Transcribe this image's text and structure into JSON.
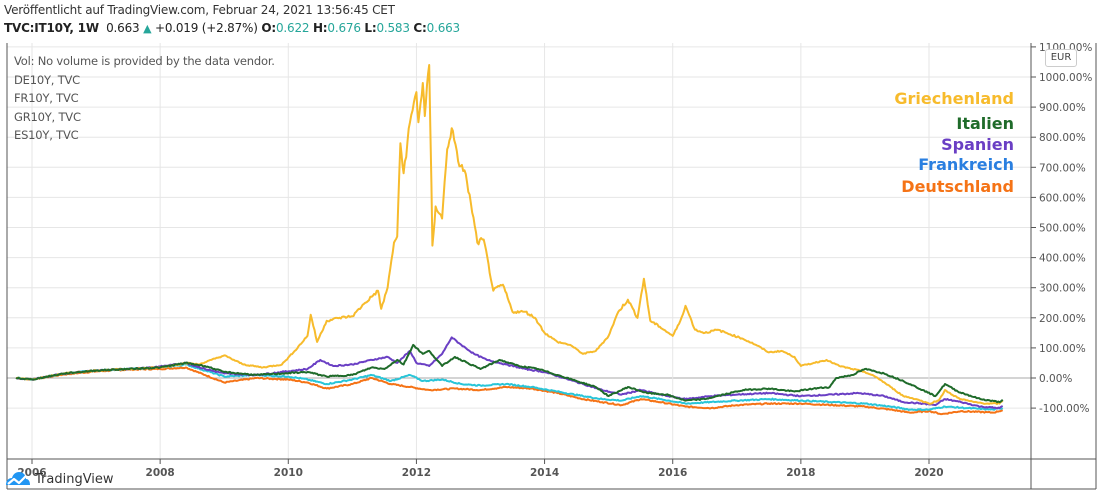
{
  "header": {
    "published": "Veröffentlicht auf TradingView.com, Februar 24, 2021 13:56:45 CET",
    "symbol": "TVC:IT10Y, 1W",
    "last": "0.663",
    "change": "+0.019 (+2.87%)",
    "open_label": "O:",
    "open": "0.622",
    "high_label": "H:",
    "high": "0.676",
    "low_label": "L:",
    "low": "0.583",
    "close_label": "C:",
    "close": "0.663"
  },
  "legend": {
    "volume": "Vol: No volume is provided by the data vendor.",
    "items": [
      "DE10Y, TVC",
      "FR10Y, TVC",
      "GR10Y, TVC",
      "ES10Y, TVC"
    ]
  },
  "currency_badge": "EUR",
  "footer": {
    "brand": "TradingView"
  },
  "colors": {
    "greece": "#f7bb2c",
    "italy": "#1f6b2a",
    "spain": "#6a3fc4",
    "france": "#29c5d8",
    "germany": "#f57316",
    "france_label": "#2a7fe0",
    "grid": "#e6e6e6",
    "axis": "#555555"
  },
  "chart_data": {
    "type": "line",
    "title": "",
    "xlabel": "",
    "ylabel": "",
    "xlim": [
      2005.75,
      2021.5
    ],
    "ylim": [
      -160,
      1110
    ],
    "grid": true,
    "x_ticks": [
      "2006",
      "2008",
      "2010",
      "2012",
      "2014",
      "2016",
      "2018",
      "2020"
    ],
    "y_ticks": [
      "1100.00%",
      "1000.00%",
      "900.00%",
      "800.00%",
      "700.00%",
      "600.00%",
      "500.00%",
      "400.00%",
      "300.00%",
      "200.00%",
      "100.00%",
      "0.00%",
      "-100.00%"
    ],
    "y_tick_values": [
      1100,
      1000,
      900,
      800,
      700,
      600,
      500,
      400,
      300,
      200,
      100,
      0,
      -100
    ],
    "series": [
      {
        "name": "Griechenland",
        "key": "greece",
        "points": [
          [
            2005.75,
            0
          ],
          [
            2006.0,
            -5
          ],
          [
            2006.5,
            15
          ],
          [
            2007.0,
            25
          ],
          [
            2007.5,
            30
          ],
          [
            2008.0,
            35
          ],
          [
            2008.4,
            50
          ],
          [
            2008.6,
            45
          ],
          [
            2008.8,
            60
          ],
          [
            2009.0,
            75
          ],
          [
            2009.3,
            45
          ],
          [
            2009.6,
            35
          ],
          [
            2009.9,
            45
          ],
          [
            2010.1,
            90
          ],
          [
            2010.3,
            140
          ],
          [
            2010.35,
            210
          ],
          [
            2010.45,
            120
          ],
          [
            2010.6,
            190
          ],
          [
            2010.8,
            200
          ],
          [
            2011.0,
            205
          ],
          [
            2011.2,
            250
          ],
          [
            2011.4,
            290
          ],
          [
            2011.45,
            230
          ],
          [
            2011.55,
            300
          ],
          [
            2011.65,
            450
          ],
          [
            2011.7,
            470
          ],
          [
            2011.75,
            780
          ],
          [
            2011.8,
            680
          ],
          [
            2011.9,
            850
          ],
          [
            2012.0,
            950
          ],
          [
            2012.03,
            850
          ],
          [
            2012.1,
            980
          ],
          [
            2012.13,
            870
          ],
          [
            2012.2,
            1040
          ],
          [
            2012.25,
            440
          ],
          [
            2012.3,
            570
          ],
          [
            2012.4,
            530
          ],
          [
            2012.48,
            760
          ],
          [
            2012.55,
            830
          ],
          [
            2012.65,
            720
          ],
          [
            2012.75,
            690
          ],
          [
            2012.85,
            580
          ],
          [
            2012.95,
            450
          ],
          [
            2013.05,
            460
          ],
          [
            2013.2,
            290
          ],
          [
            2013.35,
            310
          ],
          [
            2013.5,
            220
          ],
          [
            2013.7,
            220
          ],
          [
            2013.85,
            200
          ],
          [
            2014.0,
            150
          ],
          [
            2014.2,
            120
          ],
          [
            2014.4,
            110
          ],
          [
            2014.6,
            80
          ],
          [
            2014.8,
            90
          ],
          [
            2015.0,
            140
          ],
          [
            2015.15,
            220
          ],
          [
            2015.3,
            260
          ],
          [
            2015.45,
            200
          ],
          [
            2015.55,
            330
          ],
          [
            2015.65,
            190
          ],
          [
            2015.8,
            170
          ],
          [
            2016.0,
            140
          ],
          [
            2016.1,
            180
          ],
          [
            2016.2,
            240
          ],
          [
            2016.35,
            160
          ],
          [
            2016.5,
            150
          ],
          [
            2016.7,
            160
          ],
          [
            2016.9,
            145
          ],
          [
            2017.1,
            130
          ],
          [
            2017.3,
            110
          ],
          [
            2017.5,
            85
          ],
          [
            2017.7,
            90
          ],
          [
            2017.9,
            70
          ],
          [
            2018.0,
            40
          ],
          [
            2018.2,
            50
          ],
          [
            2018.4,
            60
          ],
          [
            2018.6,
            40
          ],
          [
            2018.8,
            30
          ],
          [
            2019.0,
            20
          ],
          [
            2019.2,
            0
          ],
          [
            2019.4,
            -30
          ],
          [
            2019.6,
            -60
          ],
          [
            2019.8,
            -70
          ],
          [
            2020.0,
            -85
          ],
          [
            2020.15,
            -75
          ],
          [
            2020.25,
            -40
          ],
          [
            2020.35,
            -55
          ],
          [
            2020.5,
            -70
          ],
          [
            2020.7,
            -80
          ],
          [
            2020.9,
            -85
          ],
          [
            2021.1,
            -85
          ],
          [
            2021.15,
            -75
          ]
        ]
      },
      {
        "name": "Italien",
        "key": "italy",
        "points": [
          [
            2005.75,
            0
          ],
          [
            2006.0,
            -5
          ],
          [
            2006.5,
            15
          ],
          [
            2007.0,
            25
          ],
          [
            2007.5,
            30
          ],
          [
            2008.0,
            35
          ],
          [
            2008.4,
            50
          ],
          [
            2008.7,
            40
          ],
          [
            2009.0,
            20
          ],
          [
            2009.5,
            10
          ],
          [
            2009.9,
            15
          ],
          [
            2010.3,
            20
          ],
          [
            2010.6,
            5
          ],
          [
            2011.0,
            10
          ],
          [
            2011.3,
            35
          ],
          [
            2011.5,
            30
          ],
          [
            2011.7,
            60
          ],
          [
            2011.8,
            45
          ],
          [
            2011.95,
            110
          ],
          [
            2012.1,
            80
          ],
          [
            2012.2,
            90
          ],
          [
            2012.4,
            40
          ],
          [
            2012.6,
            70
          ],
          [
            2012.8,
            50
          ],
          [
            2013.0,
            30
          ],
          [
            2013.3,
            60
          ],
          [
            2013.6,
            40
          ],
          [
            2013.9,
            30
          ],
          [
            2014.2,
            10
          ],
          [
            2014.5,
            -10
          ],
          [
            2014.8,
            -30
          ],
          [
            2015.0,
            -60
          ],
          [
            2015.3,
            -30
          ],
          [
            2015.6,
            -50
          ],
          [
            2015.9,
            -55
          ],
          [
            2016.2,
            -75
          ],
          [
            2016.5,
            -70
          ],
          [
            2016.8,
            -55
          ],
          [
            2017.1,
            -40
          ],
          [
            2017.5,
            -35
          ],
          [
            2017.9,
            -45
          ],
          [
            2018.2,
            -35
          ],
          [
            2018.45,
            -30
          ],
          [
            2018.55,
            0
          ],
          [
            2018.8,
            10
          ],
          [
            2019.0,
            30
          ],
          [
            2019.3,
            15
          ],
          [
            2019.6,
            -10
          ],
          [
            2019.9,
            -40
          ],
          [
            2020.1,
            -60
          ],
          [
            2020.25,
            -20
          ],
          [
            2020.45,
            -45
          ],
          [
            2020.8,
            -70
          ],
          [
            2021.1,
            -80
          ],
          [
            2021.15,
            -72
          ]
        ]
      },
      {
        "name": "Spanien",
        "key": "spain",
        "points": [
          [
            2005.75,
            0
          ],
          [
            2006.0,
            -5
          ],
          [
            2006.5,
            15
          ],
          [
            2007.0,
            25
          ],
          [
            2007.5,
            30
          ],
          [
            2008.0,
            38
          ],
          [
            2008.4,
            50
          ],
          [
            2008.7,
            30
          ],
          [
            2009.0,
            15
          ],
          [
            2009.5,
            10
          ],
          [
            2009.9,
            20
          ],
          [
            2010.3,
            30
          ],
          [
            2010.5,
            60
          ],
          [
            2010.7,
            40
          ],
          [
            2011.0,
            45
          ],
          [
            2011.3,
            60
          ],
          [
            2011.55,
            70
          ],
          [
            2011.7,
            50
          ],
          [
            2011.9,
            90
          ],
          [
            2012.0,
            50
          ],
          [
            2012.2,
            40
          ],
          [
            2012.4,
            80
          ],
          [
            2012.55,
            135
          ],
          [
            2012.7,
            110
          ],
          [
            2012.9,
            80
          ],
          [
            2013.1,
            60
          ],
          [
            2013.4,
            45
          ],
          [
            2013.7,
            30
          ],
          [
            2014.0,
            20
          ],
          [
            2014.3,
            0
          ],
          [
            2014.6,
            -20
          ],
          [
            2014.9,
            -40
          ],
          [
            2015.2,
            -55
          ],
          [
            2015.5,
            -40
          ],
          [
            2015.8,
            -55
          ],
          [
            2016.2,
            -70
          ],
          [
            2016.6,
            -60
          ],
          [
            2017.0,
            -55
          ],
          [
            2017.5,
            -50
          ],
          [
            2018.0,
            -60
          ],
          [
            2018.5,
            -55
          ],
          [
            2018.9,
            -50
          ],
          [
            2019.3,
            -60
          ],
          [
            2019.6,
            -80
          ],
          [
            2019.9,
            -85
          ],
          [
            2020.1,
            -90
          ],
          [
            2020.25,
            -70
          ],
          [
            2020.5,
            -80
          ],
          [
            2020.8,
            -95
          ],
          [
            2021.1,
            -100
          ],
          [
            2021.15,
            -93
          ]
        ]
      },
      {
        "name": "Frankreich",
        "key": "france",
        "points": [
          [
            2005.75,
            0
          ],
          [
            2006.0,
            -5
          ],
          [
            2006.5,
            15
          ],
          [
            2007.0,
            25
          ],
          [
            2007.5,
            30
          ],
          [
            2008.0,
            35
          ],
          [
            2008.4,
            45
          ],
          [
            2008.7,
            25
          ],
          [
            2009.0,
            5
          ],
          [
            2009.5,
            10
          ],
          [
            2010.0,
            5
          ],
          [
            2010.3,
            -5
          ],
          [
            2010.6,
            -20
          ],
          [
            2011.0,
            -5
          ],
          [
            2011.3,
            10
          ],
          [
            2011.6,
            -10
          ],
          [
            2011.9,
            10
          ],
          [
            2012.1,
            -10
          ],
          [
            2012.4,
            -5
          ],
          [
            2012.7,
            -20
          ],
          [
            2013.0,
            -25
          ],
          [
            2013.4,
            -20
          ],
          [
            2013.8,
            -30
          ],
          [
            2014.2,
            -45
          ],
          [
            2014.6,
            -60
          ],
          [
            2014.9,
            -70
          ],
          [
            2015.2,
            -75
          ],
          [
            2015.5,
            -60
          ],
          [
            2015.8,
            -70
          ],
          [
            2016.2,
            -85
          ],
          [
            2016.6,
            -80
          ],
          [
            2017.0,
            -75
          ],
          [
            2017.5,
            -70
          ],
          [
            2018.0,
            -75
          ],
          [
            2018.5,
            -80
          ],
          [
            2019.0,
            -85
          ],
          [
            2019.4,
            -95
          ],
          [
            2019.7,
            -105
          ],
          [
            2020.0,
            -105
          ],
          [
            2020.25,
            -95
          ],
          [
            2020.6,
            -100
          ],
          [
            2021.0,
            -105
          ],
          [
            2021.15,
            -100
          ]
        ]
      },
      {
        "name": "Deutschland",
        "key": "germany",
        "points": [
          [
            2005.75,
            0
          ],
          [
            2006.0,
            -5
          ],
          [
            2006.5,
            12
          ],
          [
            2007.0,
            22
          ],
          [
            2007.5,
            28
          ],
          [
            2008.0,
            30
          ],
          [
            2008.4,
            35
          ],
          [
            2008.7,
            10
          ],
          [
            2009.0,
            -15
          ],
          [
            2009.5,
            0
          ],
          [
            2010.0,
            -5
          ],
          [
            2010.3,
            -15
          ],
          [
            2010.6,
            -35
          ],
          [
            2011.0,
            -20
          ],
          [
            2011.3,
            0
          ],
          [
            2011.6,
            -20
          ],
          [
            2011.9,
            -30
          ],
          [
            2012.2,
            -40
          ],
          [
            2012.6,
            -35
          ],
          [
            2013.0,
            -40
          ],
          [
            2013.4,
            -30
          ],
          [
            2013.8,
            -35
          ],
          [
            2014.2,
            -50
          ],
          [
            2014.6,
            -70
          ],
          [
            2014.9,
            -80
          ],
          [
            2015.2,
            -90
          ],
          [
            2015.5,
            -70
          ],
          [
            2015.8,
            -80
          ],
          [
            2016.2,
            -95
          ],
          [
            2016.6,
            -100
          ],
          [
            2017.0,
            -90
          ],
          [
            2017.5,
            -85
          ],
          [
            2018.0,
            -85
          ],
          [
            2018.5,
            -90
          ],
          [
            2019.0,
            -95
          ],
          [
            2019.4,
            -105
          ],
          [
            2019.7,
            -115
          ],
          [
            2020.0,
            -110
          ],
          [
            2020.2,
            -120
          ],
          [
            2020.5,
            -110
          ],
          [
            2021.0,
            -115
          ],
          [
            2021.15,
            -107
          ]
        ]
      }
    ],
    "annotations": [
      {
        "text": "Griechenland",
        "key": "greece"
      },
      {
        "text": "Italien",
        "key": "italy"
      },
      {
        "text": "Spanien",
        "key": "spain"
      },
      {
        "text": "Frankreich",
        "key": "france_label"
      },
      {
        "text": "Deutschland",
        "key": "germany"
      }
    ],
    "legend_placement": "top-left"
  }
}
